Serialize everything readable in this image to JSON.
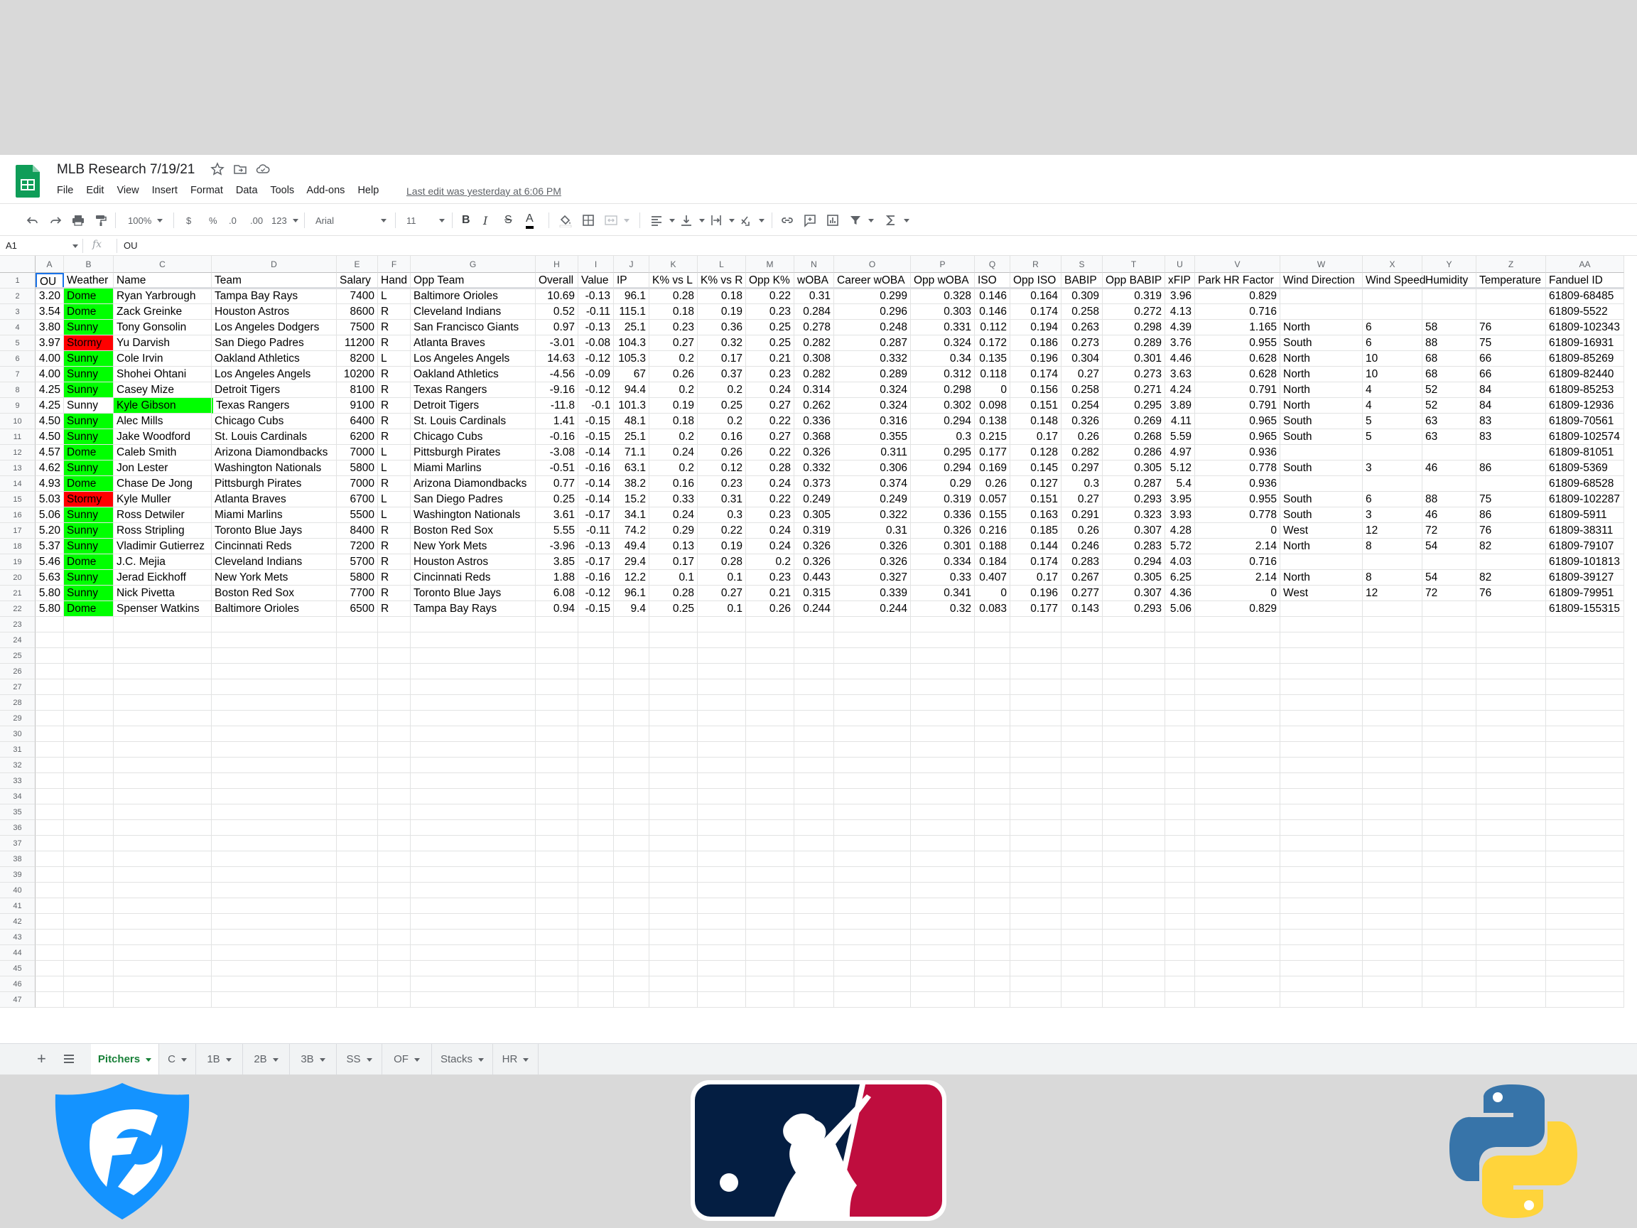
{
  "document": {
    "title": "MLB Research 7/19/21",
    "last_edit": "Last edit was yesterday at 6:06 PM",
    "menu": [
      "File",
      "Edit",
      "View",
      "Insert",
      "Format",
      "Data",
      "Tools",
      "Add-ons",
      "Help"
    ]
  },
  "toolbar": {
    "zoom": "100%",
    "currency": "$",
    "percent": "%",
    "decrease_decimal": ".0",
    "increase_decimal": ".00",
    "more_formats": "123",
    "font": "Arial",
    "font_size": "11",
    "bold": "B",
    "italic": "I",
    "strikethrough": "S",
    "text_color": "A"
  },
  "formula_bar": {
    "cell_ref": "A1",
    "fx": "fx",
    "value": "OU"
  },
  "columns": [
    "A",
    "B",
    "C",
    "D",
    "E",
    "F",
    "G",
    "H",
    "I",
    "J",
    "K",
    "L",
    "M",
    "N",
    "O",
    "P",
    "Q",
    "R",
    "S",
    "T",
    "U",
    "V",
    "W",
    "X",
    "Y",
    "Z",
    "AA"
  ],
  "headers": [
    "OU",
    "Weather",
    "Name",
    "Team",
    "Salary",
    "Hand",
    "Opp Team",
    "Overall",
    "Value",
    "IP",
    "K% vs L",
    "K% vs R",
    "Opp K%",
    "wOBA",
    "Career wOBA",
    "Opp wOBA",
    "ISO",
    "Opp ISO",
    "BABIP",
    "Opp BABIP",
    "xFIP",
    "Park HR Factor",
    "Wind Direction",
    "Wind Speed",
    "Humidity",
    "Temperature",
    "Fanduel ID"
  ],
  "rows": [
    [
      "3.20",
      "Dome",
      "Ryan Yarbrough",
      "Tampa Bay Rays",
      "7400",
      "L",
      "Baltimore Orioles",
      "10.69",
      "-0.13",
      "96.1",
      "0.28",
      "0.18",
      "0.22",
      "0.31",
      "0.299",
      "0.328",
      "0.146",
      "0.164",
      "0.309",
      "0.319",
      "3.96",
      "0.829",
      "",
      "",
      "",
      "",
      "61809-68485"
    ],
    [
      "3.54",
      "Dome",
      "Zack Greinke",
      "Houston Astros",
      "8600",
      "R",
      "Cleveland Indians",
      "0.52",
      "-0.11",
      "115.1",
      "0.18",
      "0.19",
      "0.23",
      "0.284",
      "0.296",
      "0.303",
      "0.146",
      "0.174",
      "0.258",
      "0.272",
      "4.13",
      "0.716",
      "",
      "",
      "",
      "",
      "61809-5522"
    ],
    [
      "3.80",
      "Sunny",
      "Tony Gonsolin",
      "Los Angeles Dodgers",
      "7500",
      "R",
      "San Francisco Giants",
      "0.97",
      "-0.13",
      "25.1",
      "0.23",
      "0.36",
      "0.25",
      "0.278",
      "0.248",
      "0.331",
      "0.112",
      "0.194",
      "0.263",
      "0.298",
      "4.39",
      "1.165",
      "North",
      "6",
      "58",
      "76",
      "61809-102343"
    ],
    [
      "3.97",
      "Stormy",
      "Yu Darvish",
      "San Diego Padres",
      "11200",
      "R",
      "Atlanta Braves",
      "-3.01",
      "-0.08",
      "104.3",
      "0.27",
      "0.32",
      "0.25",
      "0.282",
      "0.287",
      "0.324",
      "0.172",
      "0.186",
      "0.273",
      "0.289",
      "3.76",
      "0.955",
      "South",
      "6",
      "88",
      "75",
      "61809-16931"
    ],
    [
      "4.00",
      "Sunny",
      "Cole Irvin",
      "Oakland Athletics",
      "8200",
      "L",
      "Los Angeles Angels",
      "14.63",
      "-0.12",
      "105.3",
      "0.2",
      "0.17",
      "0.21",
      "0.308",
      "0.332",
      "0.34",
      "0.135",
      "0.196",
      "0.304",
      "0.301",
      "4.46",
      "0.628",
      "North",
      "10",
      "68",
      "66",
      "61809-85269"
    ],
    [
      "4.00",
      "Sunny",
      "Shohei Ohtani",
      "Los Angeles Angels",
      "10200",
      "R",
      "Oakland Athletics",
      "-4.56",
      "-0.09",
      "67",
      "0.26",
      "0.37",
      "0.23",
      "0.282",
      "0.289",
      "0.312",
      "0.118",
      "0.174",
      "0.27",
      "0.273",
      "3.63",
      "0.628",
      "North",
      "10",
      "68",
      "66",
      "61809-82440"
    ],
    [
      "4.25",
      "Sunny",
      "Casey Mize",
      "Detroit Tigers",
      "8100",
      "R",
      "Texas Rangers",
      "-9.16",
      "-0.12",
      "94.4",
      "0.2",
      "0.2",
      "0.24",
      "0.314",
      "0.324",
      "0.298",
      "0",
      "0.156",
      "0.258",
      "0.271",
      "4.24",
      "0.791",
      "North",
      "4",
      "52",
      "84",
      "61809-85253"
    ],
    [
      "4.25",
      "Sunny",
      "Kyle Gibson",
      "Texas Rangers",
      "9100",
      "R",
      "Detroit Tigers",
      "-11.8",
      "-0.1",
      "101.3",
      "0.19",
      "0.25",
      "0.27",
      "0.262",
      "0.324",
      "0.302",
      "0.098",
      "0.151",
      "0.254",
      "0.295",
      "3.89",
      "0.791",
      "North",
      "4",
      "52",
      "84",
      "61809-12936"
    ],
    [
      "4.50",
      "Sunny",
      "Alec Mills",
      "Chicago Cubs",
      "6400",
      "R",
      "St. Louis Cardinals",
      "1.41",
      "-0.15",
      "48.1",
      "0.18",
      "0.2",
      "0.22",
      "0.336",
      "0.316",
      "0.294",
      "0.138",
      "0.148",
      "0.326",
      "0.269",
      "4.11",
      "0.965",
      "South",
      "5",
      "63",
      "83",
      "61809-70561"
    ],
    [
      "4.50",
      "Sunny",
      "Jake Woodford",
      "St. Louis Cardinals",
      "6200",
      "R",
      "Chicago Cubs",
      "-0.16",
      "-0.15",
      "25.1",
      "0.2",
      "0.16",
      "0.27",
      "0.368",
      "0.355",
      "0.3",
      "0.215",
      "0.17",
      "0.26",
      "0.268",
      "5.59",
      "0.965",
      "South",
      "5",
      "63",
      "83",
      "61809-102574"
    ],
    [
      "4.57",
      "Dome",
      "Caleb Smith",
      "Arizona Diamondbacks",
      "7000",
      "L",
      "Pittsburgh Pirates",
      "-3.08",
      "-0.14",
      "71.1",
      "0.24",
      "0.26",
      "0.22",
      "0.326",
      "0.311",
      "0.295",
      "0.177",
      "0.128",
      "0.282",
      "0.286",
      "4.97",
      "0.936",
      "",
      "",
      "",
      "",
      "61809-81051"
    ],
    [
      "4.62",
      "Sunny",
      "Jon Lester",
      "Washington Nationals",
      "5800",
      "L",
      "Miami Marlins",
      "-0.51",
      "-0.16",
      "63.1",
      "0.2",
      "0.12",
      "0.28",
      "0.332",
      "0.306",
      "0.294",
      "0.169",
      "0.145",
      "0.297",
      "0.305",
      "5.12",
      "0.778",
      "South",
      "3",
      "46",
      "86",
      "61809-5369"
    ],
    [
      "4.93",
      "Dome",
      "Chase De Jong",
      "Pittsburgh Pirates",
      "7000",
      "R",
      "Arizona Diamondbacks",
      "0.77",
      "-0.14",
      "38.2",
      "0.16",
      "0.23",
      "0.24",
      "0.373",
      "0.374",
      "0.29",
      "0.26",
      "0.127",
      "0.3",
      "0.287",
      "5.4",
      "0.936",
      "",
      "",
      "",
      "",
      "61809-68528"
    ],
    [
      "5.03",
      "Stormy",
      "Kyle Muller",
      "Atlanta Braves",
      "6700",
      "L",
      "San Diego Padres",
      "0.25",
      "-0.14",
      "15.2",
      "0.33",
      "0.31",
      "0.22",
      "0.249",
      "0.249",
      "0.319",
      "0.057",
      "0.151",
      "0.27",
      "0.293",
      "3.95",
      "0.955",
      "South",
      "6",
      "88",
      "75",
      "61809-102287"
    ],
    [
      "5.06",
      "Sunny",
      "Ross Detwiler",
      "Miami Marlins",
      "5500",
      "L",
      "Washington Nationals",
      "3.61",
      "-0.17",
      "34.1",
      "0.24",
      "0.3",
      "0.23",
      "0.305",
      "0.322",
      "0.336",
      "0.155",
      "0.163",
      "0.291",
      "0.323",
      "3.93",
      "0.778",
      "South",
      "3",
      "46",
      "86",
      "61809-5911"
    ],
    [
      "5.20",
      "Sunny",
      "Ross Stripling",
      "Toronto Blue Jays",
      "8400",
      "R",
      "Boston Red Sox",
      "5.55",
      "-0.11",
      "74.2",
      "0.29",
      "0.22",
      "0.24",
      "0.319",
      "0.31",
      "0.326",
      "0.216",
      "0.185",
      "0.26",
      "0.307",
      "4.28",
      "0",
      "West",
      "12",
      "72",
      "76",
      "61809-38311"
    ],
    [
      "5.37",
      "Sunny",
      "Vladimir Gutierrez",
      "Cincinnati Reds",
      "7200",
      "R",
      "New York Mets",
      "-3.96",
      "-0.13",
      "49.4",
      "0.13",
      "0.19",
      "0.24",
      "0.326",
      "0.326",
      "0.301",
      "0.188",
      "0.144",
      "0.246",
      "0.283",
      "5.72",
      "2.14",
      "North",
      "8",
      "54",
      "82",
      "61809-79107"
    ],
    [
      "5.46",
      "Dome",
      "J.C. Mejia",
      "Cleveland Indians",
      "5700",
      "R",
      "Houston Astros",
      "3.85",
      "-0.17",
      "29.4",
      "0.17",
      "0.28",
      "0.2",
      "0.326",
      "0.326",
      "0.334",
      "0.184",
      "0.174",
      "0.283",
      "0.294",
      "4.03",
      "0.716",
      "",
      "",
      "",
      "",
      "61809-101813"
    ],
    [
      "5.63",
      "Sunny",
      "Jerad Eickhoff",
      "New York Mets",
      "5800",
      "R",
      "Cincinnati Reds",
      "1.88",
      "-0.16",
      "12.2",
      "0.1",
      "0.1",
      "0.23",
      "0.443",
      "0.327",
      "0.33",
      "0.407",
      "0.17",
      "0.267",
      "0.305",
      "6.25",
      "2.14",
      "North",
      "8",
      "54",
      "82",
      "61809-39127"
    ],
    [
      "5.80",
      "Sunny",
      "Nick Pivetta",
      "Boston Red Sox",
      "7700",
      "R",
      "Toronto Blue Jays",
      "6.08",
      "-0.12",
      "96.1",
      "0.28",
      "0.27",
      "0.21",
      "0.315",
      "0.339",
      "0.341",
      "0",
      "0.196",
      "0.277",
      "0.307",
      "4.36",
      "0",
      "West",
      "12",
      "72",
      "76",
      "61809-79951"
    ],
    [
      "5.80",
      "Dome",
      "Spenser Watkins",
      "Baltimore Orioles",
      "6500",
      "R",
      "Tampa Bay Rays",
      "0.94",
      "-0.15",
      "9.4",
      "0.25",
      "0.1",
      "0.26",
      "0.244",
      "0.244",
      "0.32",
      "0.083",
      "0.177",
      "0.143",
      "0.293",
      "5.06",
      "0.829",
      "",
      "",
      "",
      "",
      "61809-155315"
    ]
  ],
  "highlights": {
    "green": "#00ff00",
    "red": "#ff0000",
    "highlighted_name_row": 8
  },
  "row_numbers_start": 1,
  "row_numbers_end": 47,
  "sheet_tabs": [
    "Pitchers",
    "C",
    "1B",
    "2B",
    "3B",
    "SS",
    "OF",
    "Stacks",
    "HR"
  ],
  "active_tab": "Pitchers",
  "logos": [
    "fanduel-icon",
    "mlb-logo",
    "python-logo"
  ]
}
